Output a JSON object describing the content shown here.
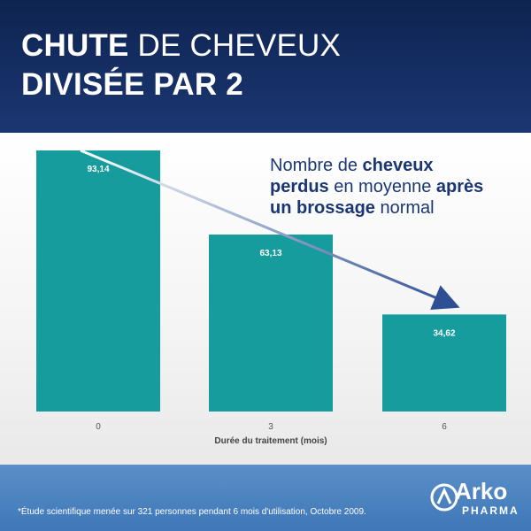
{
  "header": {
    "title_bold_1": "CHUTE",
    "title_normal_1": "DE CHEVEUX",
    "title_line_2": "DIVISÉE PAR 2"
  },
  "annotation": {
    "p1": "Nombre de ",
    "b1": "cheveux",
    "b2": "perdus",
    "p2": " en moyenne ",
    "b3": "après",
    "b4": "un brossage",
    "p3": " normal"
  },
  "chart_data": {
    "type": "bar",
    "categories": [
      "0",
      "3",
      "6"
    ],
    "values": [
      93.14,
      63.13,
      34.62
    ],
    "value_labels": [
      "93,14",
      "63,13",
      "34,62"
    ],
    "xlabel": "Durée du traitement (mois)",
    "ylabel": "",
    "ylim": [
      0,
      93.14
    ],
    "bar_color": "#169c9c",
    "arrow_color": "#2e4f94"
  },
  "footer": {
    "footnote": "*Étude scientifique menée sur 321 personnes pendant 6 mois d'utilisation, Octobre 2009.",
    "logo_name": "Arko",
    "logo_sub": "PHARMA"
  }
}
